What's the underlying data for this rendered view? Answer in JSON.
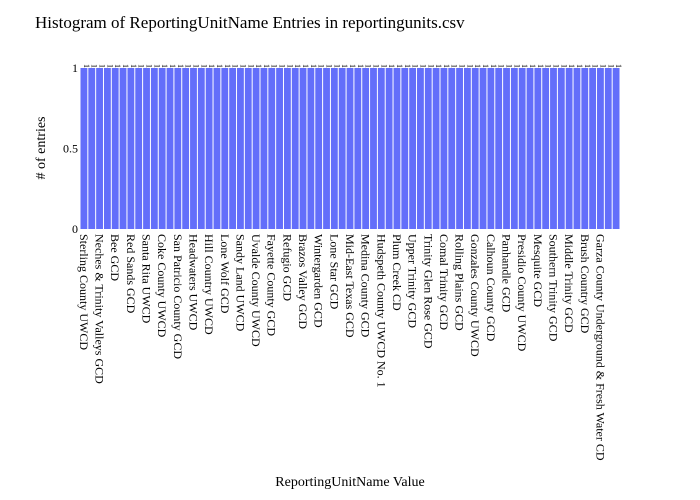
{
  "chart_data": {
    "type": "bar",
    "title": "Histogram of ReportingUnitName Entries in reportingunits.csv",
    "xlabel": "ReportingUnitName Value",
    "ylabel": "# of entries",
    "ylim": [
      0,
      1
    ],
    "yticks": [
      0,
      0.5,
      1
    ],
    "ytick_labels": [
      "0",
      "0.5",
      "1"
    ],
    "bar_color": "#636efa",
    "data_label_text": "1",
    "grid": false,
    "legend": "none",
    "categories": [
      "Sterling County UWCD",
      "",
      "Neches & Trinity Valleys GCD",
      "",
      "Bee GCD",
      "",
      "Red Sands GCD",
      "",
      "Santa Rita UWCD",
      "",
      "Coke County UWCD",
      "",
      "San Patricio County GCD",
      "",
      "Headwaters UWCD",
      "",
      "Hill Country UWCD",
      "",
      "Lone Wolf GCD",
      "",
      "Sandy Land UWCD",
      "",
      "Uvalde County UWCD",
      "",
      "Fayette County GCD",
      "",
      "Refugio GCD",
      "",
      "Brazos Valley GCD",
      "",
      "Wintergarden GCD",
      "",
      "Lone Star GCD",
      "",
      "Mid-East Texas GCD",
      "",
      "Medina County GCD",
      "",
      "Hudspeth County UWCD No. 1",
      "",
      "Plum Creek CD",
      "",
      "Upper Trinity GCD",
      "",
      "Trinity Glen Rose GCD",
      "",
      "Comal Trinity GCD",
      "",
      "Rolling Plains GCD",
      "",
      "Gonzales County UWCD",
      "",
      "Calhoun County GCD",
      "",
      "Panhandle GCD",
      "",
      "Presidio County UWCD",
      "",
      "Mesquite GCD",
      "",
      "Southern Trinity GCD",
      "",
      "Middle Trinity GCD",
      "",
      "Brush Country GCD",
      "",
      "Garza County Underground & Fresh Water CD",
      "",
      ""
    ],
    "values": [
      1,
      1,
      1,
      1,
      1,
      1,
      1,
      1,
      1,
      1,
      1,
      1,
      1,
      1,
      1,
      1,
      1,
      1,
      1,
      1,
      1,
      1,
      1,
      1,
      1,
      1,
      1,
      1,
      1,
      1,
      1,
      1,
      1,
      1,
      1,
      1,
      1,
      1,
      1,
      1,
      1,
      1,
      1,
      1,
      1,
      1,
      1,
      1,
      1,
      1,
      1,
      1,
      1,
      1,
      1,
      1,
      1,
      1,
      1,
      1,
      1,
      1,
      1,
      1,
      1,
      1,
      1,
      1,
      1
    ]
  }
}
